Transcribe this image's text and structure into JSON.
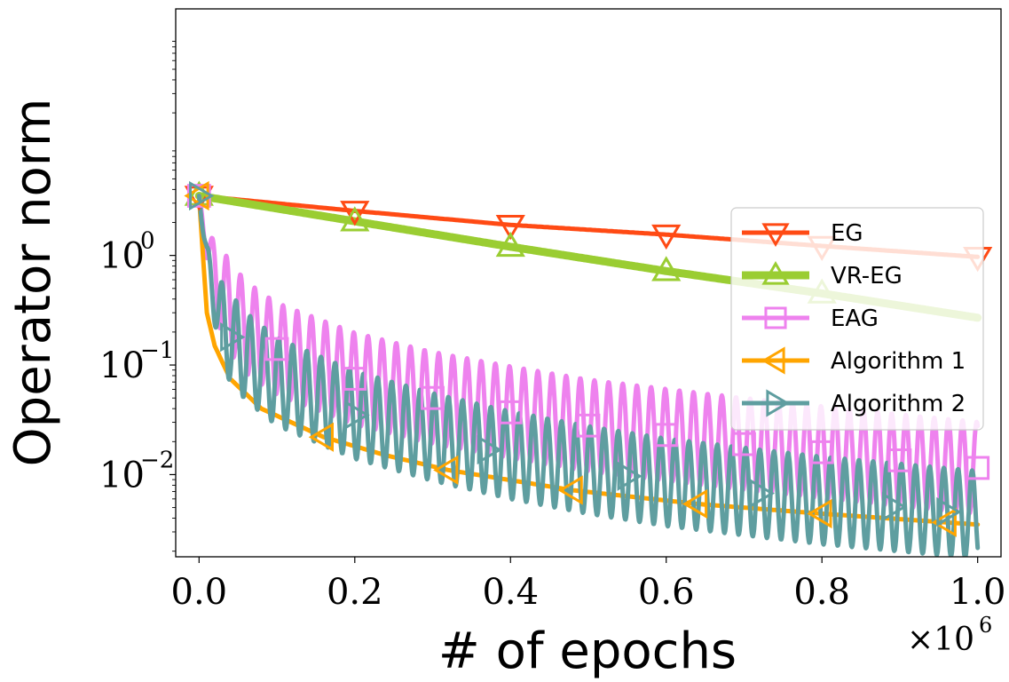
{
  "chart_data": {
    "type": "line",
    "title": "",
    "xlabel": "# of epochs",
    "ylabel": "Operator norm",
    "x_scale_label": {
      "base": "×10",
      "exponent": "6"
    },
    "x_unit_multiplier": 1000000,
    "xlim": [
      -0.03,
      1.03
    ],
    "ylim_log10": [
      -2.75,
      2.25
    ],
    "yscale": "log",
    "grid": false,
    "legend_position": "center-right",
    "x_ticks": [
      {
        "value": 0.0,
        "label": "0.0"
      },
      {
        "value": 0.2,
        "label": "0.2"
      },
      {
        "value": 0.4,
        "label": "0.4"
      },
      {
        "value": 0.6,
        "label": "0.6"
      },
      {
        "value": 0.8,
        "label": "0.8"
      },
      {
        "value": 1.0,
        "label": "1.0"
      }
    ],
    "y_ticks": [
      {
        "log10": 0,
        "base": "10",
        "exponent": "0"
      },
      {
        "log10": -1,
        "base": "10",
        "exponent": "−1"
      },
      {
        "log10": -2,
        "base": "10",
        "exponent": "−2"
      }
    ],
    "series": [
      {
        "name": "EG",
        "color": "#ff4a14",
        "marker": "triangle-down",
        "oscillation": 0,
        "x": [
          0.0,
          0.2,
          0.4,
          0.6,
          0.8,
          1.0
        ],
        "y": [
          3.5,
          2.55,
          1.9,
          1.55,
          1.22,
          0.97
        ],
        "marker_x": [
          0.0,
          0.2,
          0.4,
          0.6,
          0.8,
          1.0
        ]
      },
      {
        "name": "VR-EG",
        "color": "#9acd32",
        "marker": "triangle-up",
        "oscillation": 0,
        "x": [
          0.0,
          0.2,
          0.4,
          0.6,
          0.8,
          1.0
        ],
        "y": [
          3.5,
          2.05,
          1.2,
          0.72,
          0.45,
          0.27
        ],
        "marker_x": [
          0.0,
          0.2,
          0.4,
          0.6,
          0.8
        ]
      },
      {
        "name": "EAG",
        "color": "#ee82ee",
        "marker": "square",
        "oscillation": 0.42,
        "x": [
          0.0,
          0.01,
          0.03,
          0.06,
          0.1,
          0.2,
          0.3,
          0.4,
          0.5,
          0.6,
          0.7,
          0.8,
          0.9,
          1.0
        ],
        "y": [
          3.5,
          1.2,
          0.42,
          0.22,
          0.14,
          0.075,
          0.05,
          0.037,
          0.028,
          0.023,
          0.019,
          0.016,
          0.0135,
          0.0115
        ],
        "marker_x": [
          0.0,
          0.1,
          0.2,
          0.3,
          0.4,
          0.5,
          0.6,
          0.7,
          0.8,
          0.9,
          1.0
        ]
      },
      {
        "name": "Algorithm 1",
        "color": "#ffa500",
        "marker": "triangle-left",
        "oscillation": 0,
        "x": [
          0.0,
          0.005,
          0.01,
          0.02,
          0.04,
          0.08,
          0.16,
          0.24,
          0.32,
          0.48,
          0.64,
          0.8,
          1.0
        ],
        "y": [
          3.5,
          1.0,
          0.3,
          0.15,
          0.075,
          0.04,
          0.022,
          0.015,
          0.011,
          0.0072,
          0.0054,
          0.0044,
          0.0035
        ],
        "marker_x": [
          0.0,
          0.16,
          0.32,
          0.48,
          0.64,
          0.8,
          0.96
        ]
      },
      {
        "name": "Algorithm 2",
        "color": "#5f9ea0",
        "marker": "triangle-right",
        "oscillation": 0.4,
        "x": [
          0.0,
          0.01,
          0.03,
          0.06,
          0.1,
          0.2,
          0.3,
          0.4,
          0.5,
          0.6,
          0.7,
          0.8,
          0.9,
          1.0
        ],
        "y": [
          3.5,
          0.9,
          0.22,
          0.12,
          0.07,
          0.035,
          0.022,
          0.015,
          0.011,
          0.0085,
          0.007,
          0.0058,
          0.005,
          0.0043
        ],
        "marker_x": [
          0.0,
          0.04,
          0.2,
          0.37,
          0.55,
          0.72,
          0.89,
          0.96
        ]
      }
    ]
  }
}
